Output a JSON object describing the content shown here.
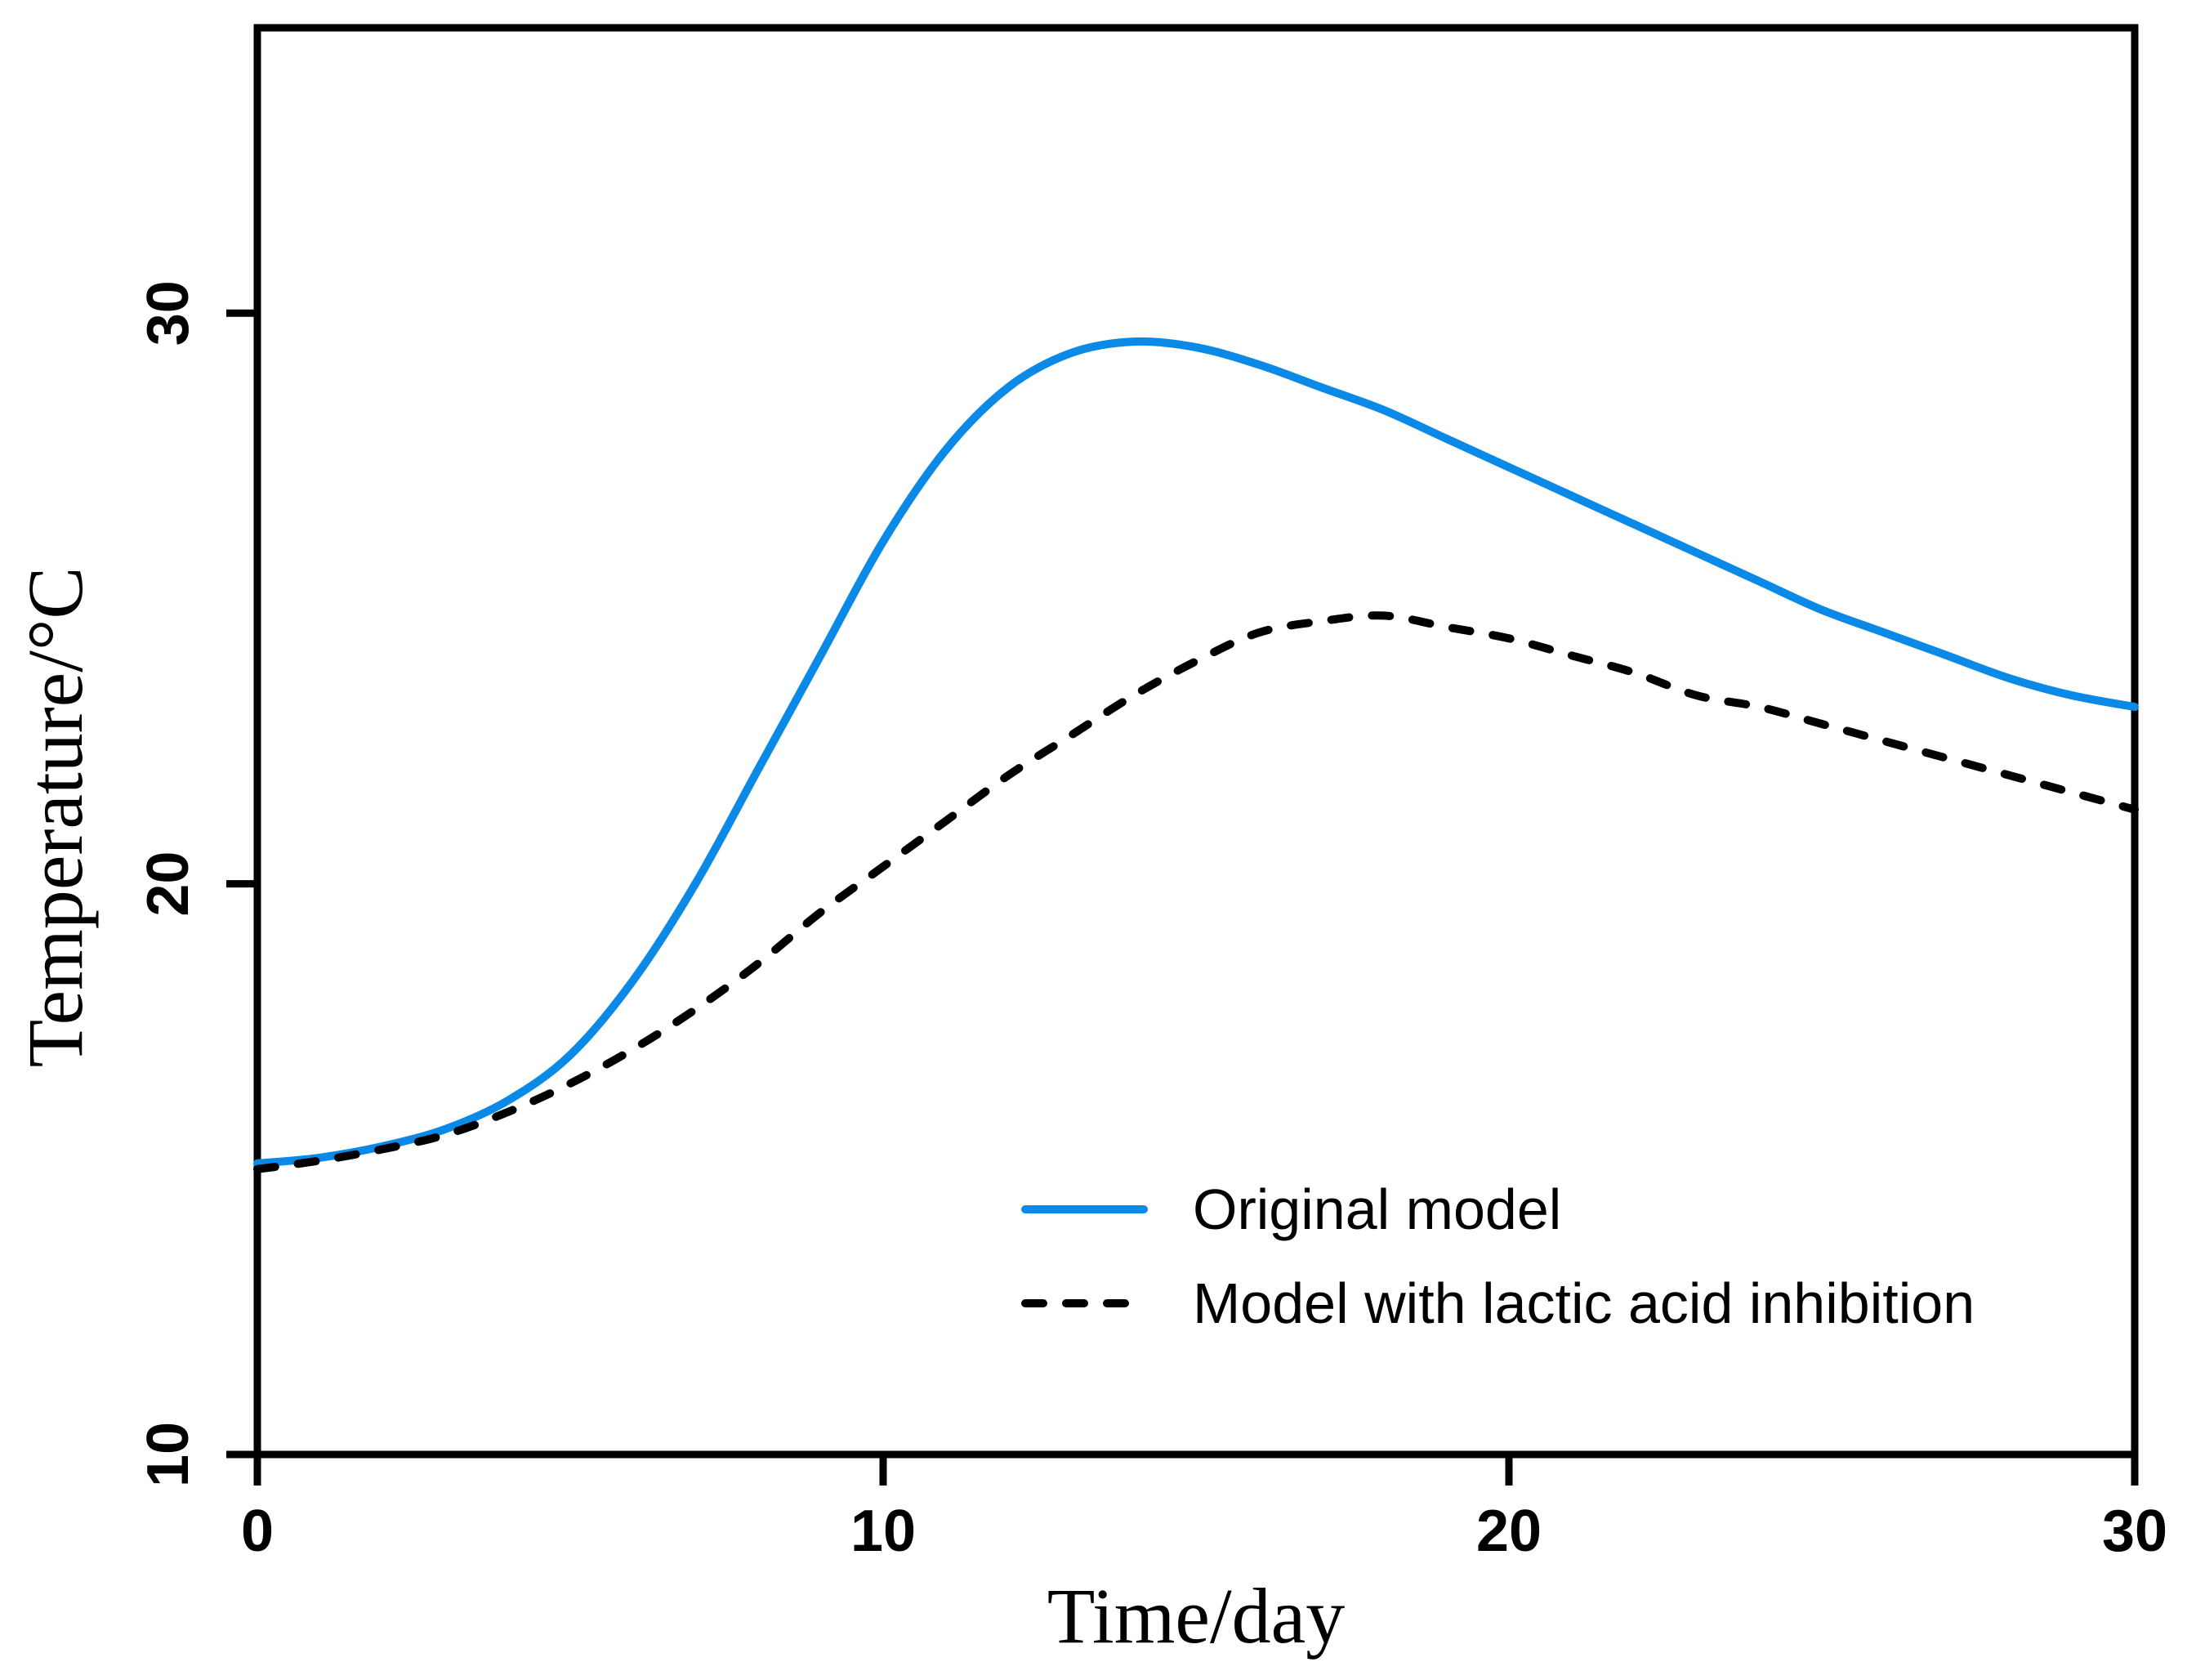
{
  "chart_data": {
    "type": "line",
    "title": "",
    "xlabel": "Time/day",
    "ylabel": "Temperature/°C",
    "xlim": [
      0,
      30
    ],
    "ylim": [
      10,
      35
    ],
    "xticks": [
      0,
      10,
      20,
      30
    ],
    "yticks": [
      10,
      20,
      30
    ],
    "grid": false,
    "legend_position": "bottom-right",
    "series": [
      {
        "name": "Original model",
        "color": "#0a8ae6",
        "style": "solid",
        "x": [
          0,
          1,
          2,
          3,
          4,
          5,
          6,
          7,
          8,
          9,
          10,
          11,
          12,
          13,
          14,
          15,
          16,
          17,
          18,
          19,
          20,
          21,
          22,
          23,
          24,
          25,
          26,
          27,
          28,
          29,
          30
        ],
        "y": [
          15.1,
          15.2,
          15.4,
          15.7,
          16.2,
          17.0,
          18.3,
          20.0,
          22.0,
          24.0,
          26.0,
          27.6,
          28.7,
          29.3,
          29.5,
          29.4,
          29.1,
          28.7,
          28.3,
          27.8,
          27.3,
          26.8,
          26.3,
          25.8,
          25.3,
          24.8,
          24.4,
          24.0,
          23.6,
          23.3,
          23.1
        ]
      },
      {
        "name": "Model with lactic acid inhibition",
        "color": "#000000",
        "style": "dashed",
        "x": [
          0,
          1,
          2,
          3,
          4,
          5,
          6,
          7,
          8,
          9,
          10,
          11,
          12,
          13,
          14,
          15,
          16,
          17,
          18,
          19,
          20,
          21,
          22,
          23,
          24,
          25,
          26,
          27,
          28,
          29,
          30
        ],
        "y": [
          15.0,
          15.15,
          15.35,
          15.6,
          16.0,
          16.5,
          17.1,
          17.8,
          18.6,
          19.5,
          20.3,
          21.1,
          21.9,
          22.6,
          23.3,
          23.9,
          24.4,
          24.6,
          24.7,
          24.5,
          24.3,
          24.0,
          23.7,
          23.3,
          23.1,
          22.8,
          22.5,
          22.2,
          21.9,
          21.6,
          21.3
        ]
      }
    ]
  }
}
